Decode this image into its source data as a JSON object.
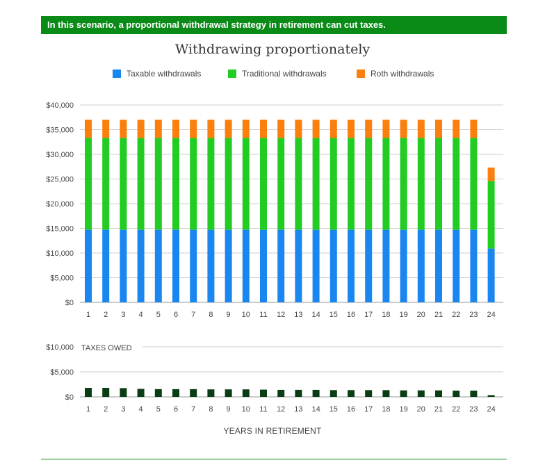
{
  "banner": {
    "text": "In this scenario, a proportional withdrawal strategy in retirement can cut taxes."
  },
  "colors": {
    "banner": "#0a8a17",
    "taxable": "#1a86f0",
    "traditional": "#22cc22",
    "roth": "#fb7f0d",
    "taxes": "#0b3d14"
  },
  "chart_data": [
    {
      "type": "bar",
      "stacked": true,
      "title": "Withdrawing proportionately",
      "legend_position": "top",
      "categories": [
        "1",
        "2",
        "3",
        "4",
        "5",
        "6",
        "7",
        "8",
        "9",
        "10",
        "11",
        "12",
        "13",
        "14",
        "15",
        "16",
        "17",
        "18",
        "19",
        "20",
        "21",
        "22",
        "23",
        "24"
      ],
      "series": [
        {
          "name": "Taxable withdrawals",
          "color": "#1a86f0",
          "values": [
            14700,
            14700,
            14700,
            14700,
            14700,
            14700,
            14700,
            14700,
            14700,
            14700,
            14700,
            14700,
            14700,
            14700,
            14700,
            14700,
            14700,
            14700,
            14700,
            14700,
            14700,
            14700,
            14700,
            10900
          ]
        },
        {
          "name": "Traditional withdrawals",
          "color": "#22cc22",
          "values": [
            18600,
            18600,
            18600,
            18600,
            18600,
            18600,
            18600,
            18600,
            18600,
            18600,
            18600,
            18600,
            18600,
            18600,
            18600,
            18600,
            18600,
            18600,
            18600,
            18600,
            18600,
            18600,
            18600,
            13700
          ]
        },
        {
          "name": "Roth withdrawals",
          "color": "#fb7f0d",
          "values": [
            3700,
            3700,
            3700,
            3700,
            3700,
            3700,
            3700,
            3700,
            3700,
            3700,
            3700,
            3700,
            3700,
            3700,
            3700,
            3700,
            3700,
            3700,
            3700,
            3700,
            3700,
            3700,
            3700,
            2700
          ]
        }
      ],
      "yticks": [
        "$0",
        "$5,000",
        "$10,000",
        "$15,000",
        "$20,000",
        "$25,000",
        "$30,000",
        "$35,000",
        "$40,000"
      ],
      "ylim": [
        0,
        40000
      ],
      "grid": true
    },
    {
      "type": "bar",
      "label": "TAXES OWED",
      "categories": [
        "1",
        "2",
        "3",
        "4",
        "5",
        "6",
        "7",
        "8",
        "9",
        "10",
        "11",
        "12",
        "13",
        "14",
        "15",
        "16",
        "17",
        "18",
        "19",
        "20",
        "21",
        "22",
        "23",
        "24"
      ],
      "series": [
        {
          "name": "",
          "color": "#0b3d14",
          "values": [
            1800,
            1800,
            1750,
            1600,
            1550,
            1550,
            1550,
            1500,
            1500,
            1500,
            1450,
            1400,
            1400,
            1400,
            1350,
            1350,
            1350,
            1350,
            1300,
            1300,
            1300,
            1250,
            1250,
            350
          ]
        }
      ],
      "yticks": [
        "$0",
        "$5,000",
        "$10,000"
      ],
      "ylim": [
        0,
        10000
      ],
      "xlabel": "YEARS IN RETIREMENT"
    }
  ]
}
